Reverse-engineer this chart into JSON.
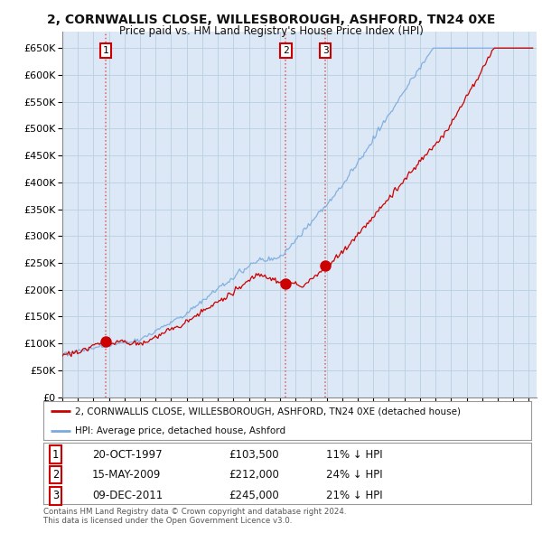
{
  "title": "2, CORNWALLIS CLOSE, WILLESBOROUGH, ASHFORD, TN24 0XE",
  "subtitle": "Price paid vs. HM Land Registry's House Price Index (HPI)",
  "ylim": [
    0,
    680000
  ],
  "yticks": [
    0,
    50000,
    100000,
    150000,
    200000,
    250000,
    300000,
    350000,
    400000,
    450000,
    500000,
    550000,
    600000,
    650000
  ],
  "xlim_start": 1995.0,
  "xlim_end": 2025.5,
  "sale_dates": [
    1997.8,
    2009.37,
    2011.92
  ],
  "sale_prices": [
    103500,
    212000,
    245000
  ],
  "sale_labels": [
    "1",
    "2",
    "3"
  ],
  "legend_entries": [
    "2, CORNWALLIS CLOSE, WILLESBOROUGH, ASHFORD, TN24 0XE (detached house)",
    "HPI: Average price, detached house, Ashford"
  ],
  "table_rows": [
    [
      "1",
      "20-OCT-1997",
      "£103,500",
      "11% ↓ HPI"
    ],
    [
      "2",
      "15-MAY-2009",
      "£212,000",
      "24% ↓ HPI"
    ],
    [
      "3",
      "09-DEC-2011",
      "£245,000",
      "21% ↓ HPI"
    ]
  ],
  "footer": [
    "Contains HM Land Registry data © Crown copyright and database right 2024.",
    "This data is licensed under the Open Government Licence v3.0."
  ],
  "line_color_red": "#cc0000",
  "line_color_blue": "#7aaadd",
  "bg_color": "#ffffff",
  "plot_bg_color": "#dce8f5",
  "grid_color": "#b8cfe0",
  "dashed_color": "#dd4444"
}
